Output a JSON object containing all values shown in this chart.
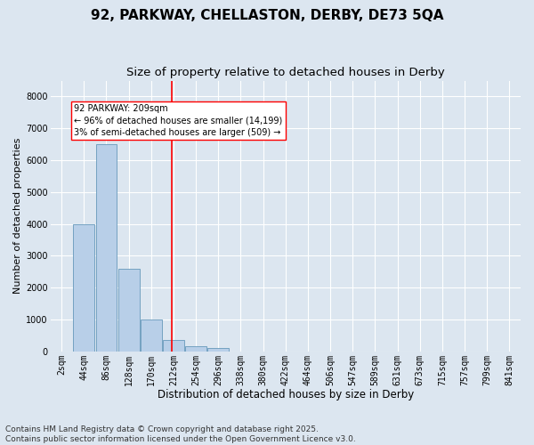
{
  "title1": "92, PARKWAY, CHELLASTON, DERBY, DE73 5QA",
  "title2": "Size of property relative to detached houses in Derby",
  "xlabel": "Distribution of detached houses by size in Derby",
  "ylabel": "Number of detached properties",
  "categories": [
    "2sqm",
    "44sqm",
    "86sqm",
    "128sqm",
    "170sqm",
    "212sqm",
    "254sqm",
    "296sqm",
    "338sqm",
    "380sqm",
    "422sqm",
    "464sqm",
    "506sqm",
    "547sqm",
    "589sqm",
    "631sqm",
    "673sqm",
    "715sqm",
    "757sqm",
    "799sqm",
    "841sqm"
  ],
  "values": [
    5,
    4000,
    6500,
    2600,
    1000,
    350,
    150,
    100,
    0,
    0,
    0,
    0,
    0,
    0,
    0,
    0,
    0,
    0,
    0,
    0,
    0
  ],
  "bar_color": "#b8cfe8",
  "bar_edge_color": "#6699bb",
  "vline_color": "red",
  "annotation_text": "92 PARKWAY: 209sqm\n← 96% of detached houses are smaller (14,199)\n3% of semi-detached houses are larger (509) →",
  "annotation_box_color": "white",
  "annotation_box_edge_color": "red",
  "ylim": [
    0,
    8500
  ],
  "yticks": [
    0,
    1000,
    2000,
    3000,
    4000,
    5000,
    6000,
    7000,
    8000
  ],
  "background_color": "#dce6f0",
  "plot_background": "#dce6f0",
  "grid_color": "white",
  "footer": "Contains HM Land Registry data © Crown copyright and database right 2025.\nContains public sector information licensed under the Open Government Licence v3.0.",
  "title1_fontsize": 11,
  "title2_fontsize": 9.5,
  "xlabel_fontsize": 8.5,
  "ylabel_fontsize": 8,
  "tick_fontsize": 7,
  "annotation_fontsize": 7,
  "footer_fontsize": 6.5
}
